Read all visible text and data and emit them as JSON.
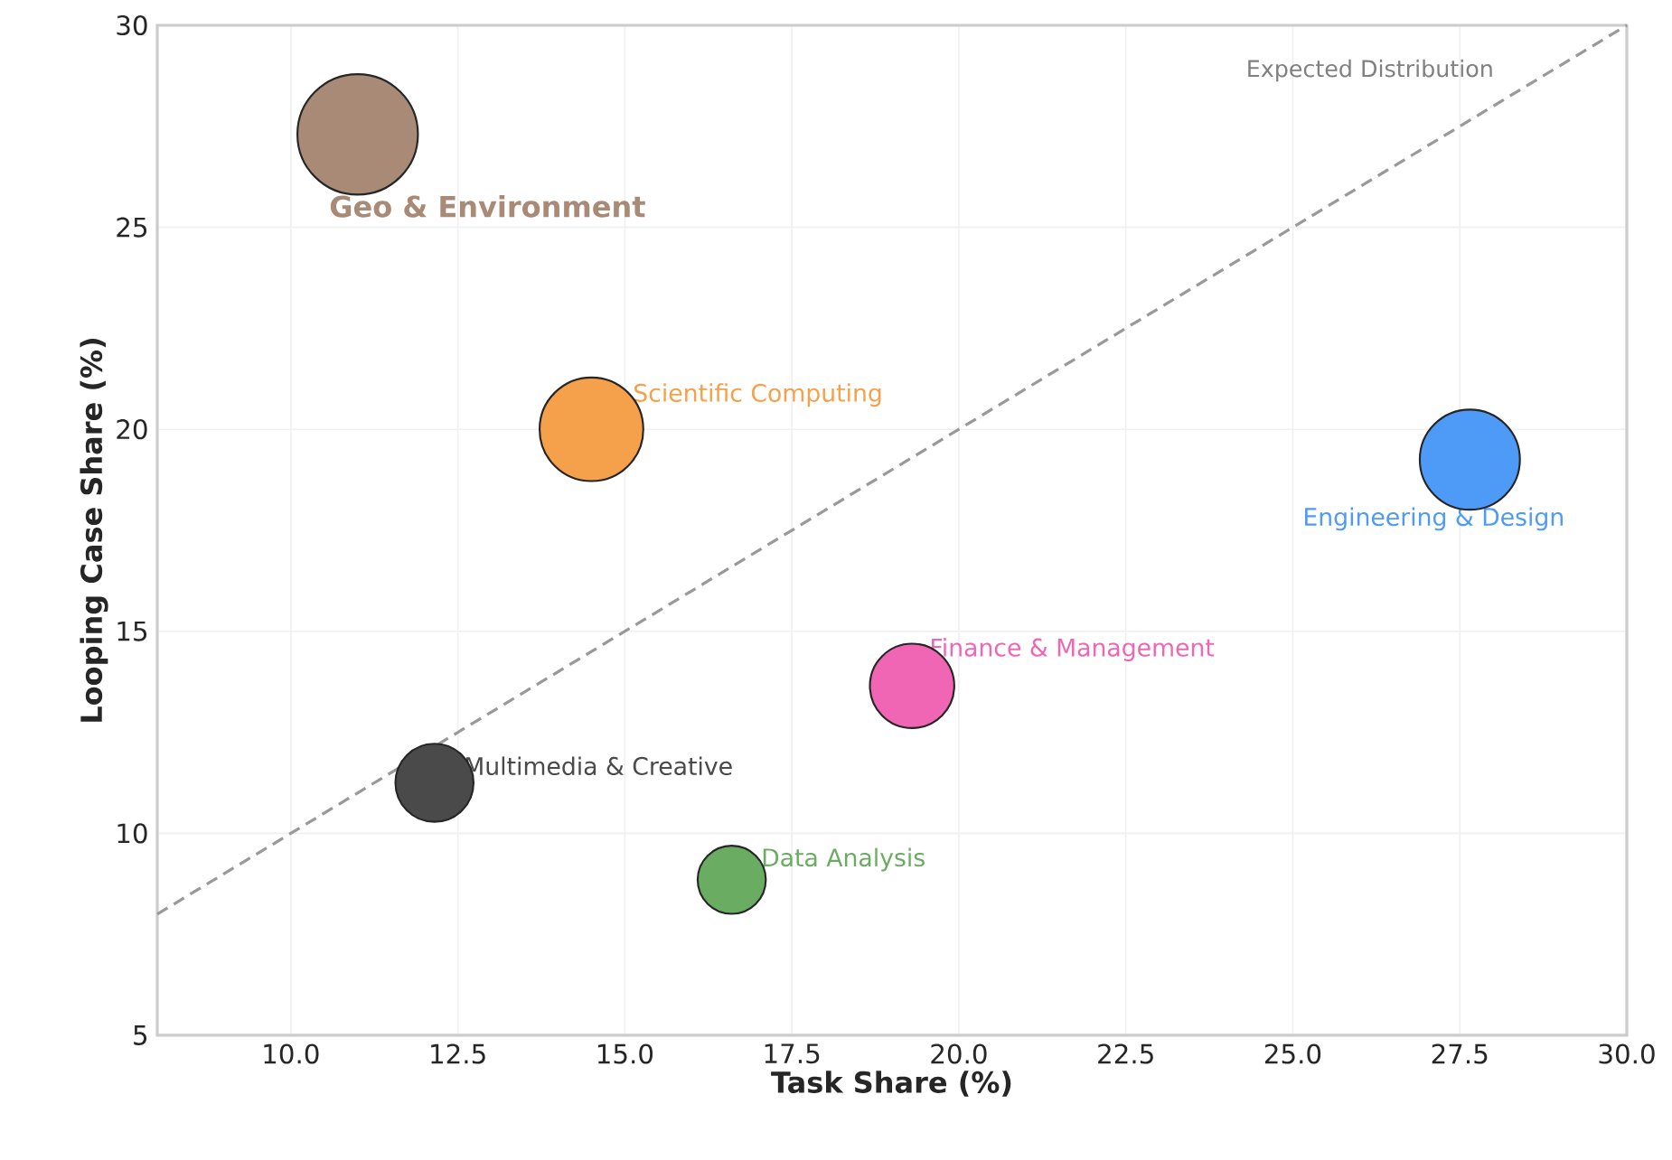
{
  "chart_data": {
    "type": "bubble",
    "xlabel": "Task Share (%)",
    "ylabel": "Looping Case Share (%)",
    "xlim": [
      8,
      30
    ],
    "ylim": [
      5,
      30
    ],
    "xticks": [
      {
        "value": 10,
        "label": "10.0"
      },
      {
        "value": 12.5,
        "label": "12.5"
      },
      {
        "value": 15,
        "label": "15.0"
      },
      {
        "value": 17.5,
        "label": "17.5"
      },
      {
        "value": 20,
        "label": "20.0"
      },
      {
        "value": 22.5,
        "label": "22.5"
      },
      {
        "value": 25,
        "label": "25.0"
      },
      {
        "value": 27.5,
        "label": "27.5"
      },
      {
        "value": 30,
        "label": "30.0"
      }
    ],
    "yticks": [
      5,
      10,
      15,
      20,
      25,
      30
    ],
    "grid": true,
    "series": [
      {
        "name": "Geo & Environment",
        "color": "#a88a76",
        "x": [
          11.0
        ],
        "values": [
          27.3
        ],
        "sizes": [
          1
        ]
      },
      {
        "name": "Scientific Computing",
        "color": "#f5a04b",
        "x": [
          14.5
        ],
        "values": [
          20.0
        ],
        "sizes": [
          0.74
        ]
      },
      {
        "name": "Engineering & Design",
        "color": "#4e9af7",
        "x": [
          27.65
        ],
        "values": [
          19.25
        ],
        "sizes": [
          0.69
        ]
      },
      {
        "name": "Finance & Management",
        "color": "#f066b4",
        "x": [
          19.3
        ],
        "values": [
          13.65
        ],
        "sizes": [
          0.49
        ]
      },
      {
        "name": "Multimedia & Creative",
        "color": "#4a4a4a",
        "x": [
          12.15
        ],
        "values": [
          11.25
        ],
        "sizes": [
          0.42
        ]
      },
      {
        "name": "Data Analysis",
        "color": "#6aad62",
        "x": [
          16.6
        ],
        "values": [
          8.85
        ],
        "sizes": [
          0.32
        ]
      },
      {
        "name": "Expected Distribution",
        "type": "line",
        "color": "#999999",
        "line_style": "dashed",
        "marker": "none",
        "x": [
          8,
          30
        ],
        "values": [
          8,
          30
        ]
      }
    ]
  }
}
